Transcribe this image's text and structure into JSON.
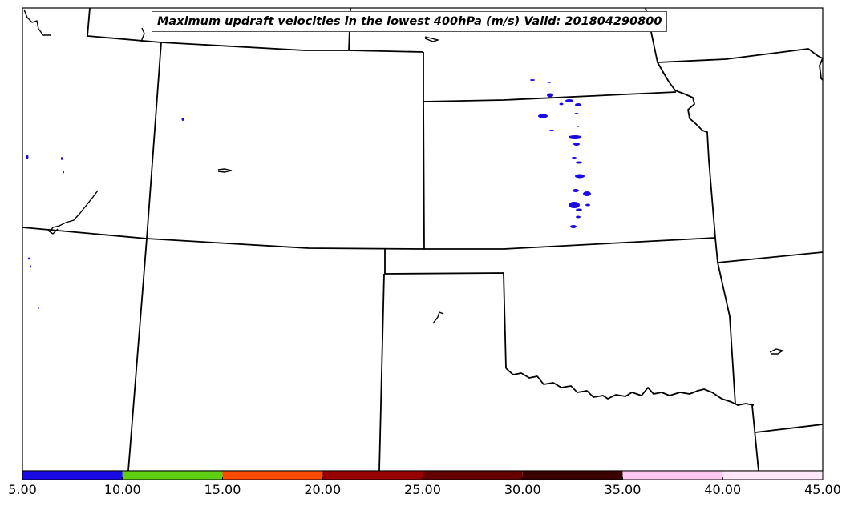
{
  "map": {
    "title": "Maximum updraft velocities in the lowest 400hPa (m/s) Valid: 201804290800"
  },
  "colorbar": {
    "ticks": [
      "5.00",
      "10.00",
      "15.00",
      "20.00",
      "25.00",
      "30.00",
      "35.00",
      "40.00",
      "45.00"
    ],
    "bins": [
      {
        "min": 5,
        "max": 10,
        "color": "#1a0ae6"
      },
      {
        "min": 10,
        "max": 15,
        "color": "#5fcf12"
      },
      {
        "min": 15,
        "max": 20,
        "color": "#ff4b00"
      },
      {
        "min": 20,
        "max": 25,
        "color": "#990000"
      },
      {
        "min": 25,
        "max": 30,
        "color": "#640000"
      },
      {
        "min": 30,
        "max": 35,
        "color": "#3a0000"
      },
      {
        "min": 35,
        "max": 40,
        "color": "#ffc8f2"
      },
      {
        "min": 40,
        "max": 45,
        "color": "#ffe6f8"
      }
    ]
  },
  "colors": {
    "boundary": "#000000",
    "updraft_5_10": "#1a0ae6"
  }
}
